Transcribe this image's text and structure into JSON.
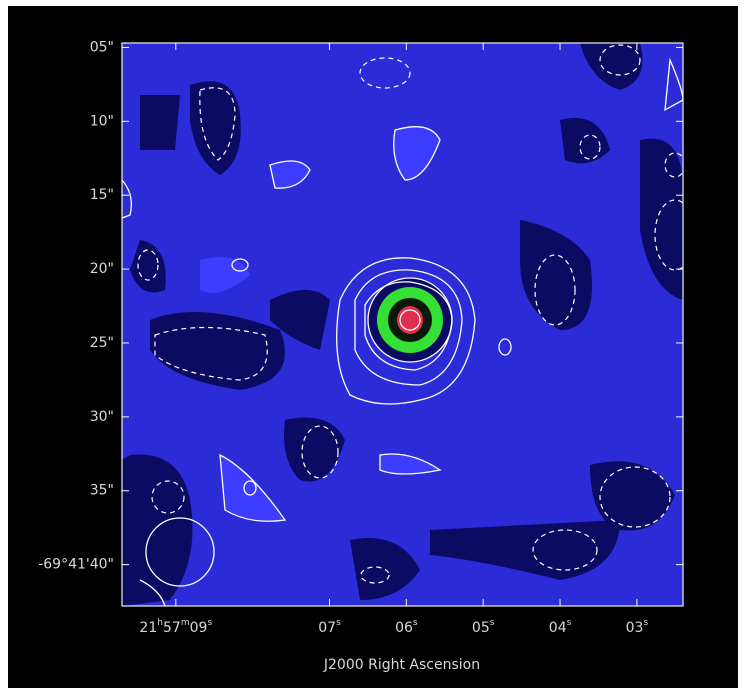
{
  "chart_data": {
    "type": "image",
    "xlabel": "J2000 Right Ascension",
    "xlim": [
      9.7,
      2.4
    ],
    "xticks": [
      {
        "value": 9,
        "label": "21h57m09s"
      },
      {
        "value": 7,
        "label": "07s"
      },
      {
        "value": 6,
        "label": "06s"
      },
      {
        "value": 5,
        "label": "05s"
      },
      {
        "value": 4,
        "label": "04s"
      },
      {
        "value": 3,
        "label": "03s"
      }
    ],
    "ylim": [
      42.8,
      4.7
    ],
    "yticks": [
      {
        "value": 5,
        "label": "05\""
      },
      {
        "value": 10,
        "label": "10\""
      },
      {
        "value": 15,
        "label": "15\""
      },
      {
        "value": 20,
        "label": "20\""
      },
      {
        "value": 25,
        "label": "25\""
      },
      {
        "value": 30,
        "label": "30\""
      },
      {
        "value": 35,
        "label": "35\""
      },
      {
        "value": 40,
        "label": "-69°41'40\""
      }
    ]
  }
}
